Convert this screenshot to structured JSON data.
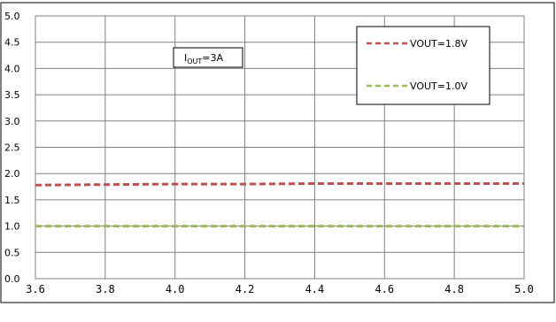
{
  "chart_data": {
    "type": "line",
    "x": [
      3.6,
      3.8,
      4.0,
      4.2,
      4.4,
      4.6,
      4.8,
      5.0
    ],
    "series": [
      {
        "name": "VOUT=1.8V",
        "color": "#c0504d",
        "values": [
          1.78,
          1.79,
          1.8,
          1.8,
          1.81,
          1.81,
          1.81,
          1.81
        ]
      },
      {
        "name": "VOUT=1.0V",
        "color": "#9bbb59",
        "values": [
          1.0,
          1.0,
          1.0,
          1.0,
          1.0,
          1.0,
          1.0,
          1.0
        ]
      }
    ],
    "xlim": [
      3.6,
      5.0
    ],
    "ylim": [
      0.0,
      5.0
    ],
    "x_ticks": [
      "3.6",
      "3.8",
      "4.0",
      "4.2",
      "4.4",
      "4.6",
      "4.8",
      "5.0"
    ],
    "y_ticks": [
      "0.0",
      "0.5",
      "1.0",
      "1.5",
      "2.0",
      "2.5",
      "3.0",
      "3.5",
      "4.0",
      "4.5",
      "5.0"
    ],
    "annotation": {
      "base": "I",
      "sub": "OUT",
      "rest": "=3A"
    },
    "grid": true,
    "legend_position": "top-right"
  }
}
